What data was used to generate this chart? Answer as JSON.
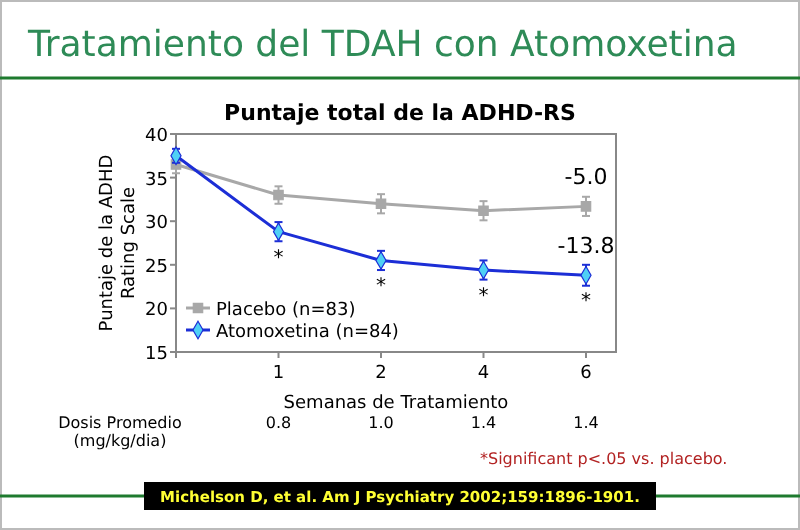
{
  "chart_data": {
    "type": "line",
    "title": "Tratamiento del TDAH con Atomoxetina",
    "subtitle": "Puntaje total de la ADHD-RS",
    "xlabel": "Semanas de Tratamiento",
    "ylabel": "Puntaje de la ADHD Rating Scale",
    "categories": [
      null,
      "1",
      "2",
      "4",
      "6"
    ],
    "series": [
      {
        "name": "Placebo (n=83)",
        "color": "#a8a8a8",
        "marker": "square",
        "values": [
          36.5,
          33.0,
          32.0,
          31.2,
          31.7
        ],
        "errors": [
          1.0,
          1.0,
          1.1,
          1.1,
          1.1
        ]
      },
      {
        "name": "Atomoxetina (n=84)",
        "color": "#1c2ed6",
        "marker": "diamond",
        "values": [
          37.5,
          28.8,
          25.5,
          24.4,
          23.8
        ],
        "errors": [
          0.8,
          1.1,
          1.1,
          1.1,
          1.2
        ]
      }
    ],
    "ylim": [
      15,
      40
    ],
    "yticks": [
      15,
      20,
      25,
      30,
      35,
      40
    ],
    "grid": false,
    "legend": "bottom left",
    "annotations": [
      {
        "text": "-5.0",
        "x": "6",
        "y": 31.7
      },
      {
        "text": "-13.8",
        "x": "6",
        "y": 23.8
      },
      {
        "text": "*",
        "x": "1",
        "y": 28.8
      },
      {
        "text": "*",
        "x": "2",
        "y": 25.5
      },
      {
        "text": "*",
        "x": "4",
        "y": 24.4
      },
      {
        "text": "*",
        "x": "6",
        "y": 23.8
      },
      "Dosis Promedio (mg/kg/dia)",
      "0.8",
      "1.0",
      "1.4",
      "1.4",
      "*Significant p<.05 vs. placebo.",
      "Michelson D, et al. Am J Psychiatry 2002;159:1896-1901."
    ]
  }
}
